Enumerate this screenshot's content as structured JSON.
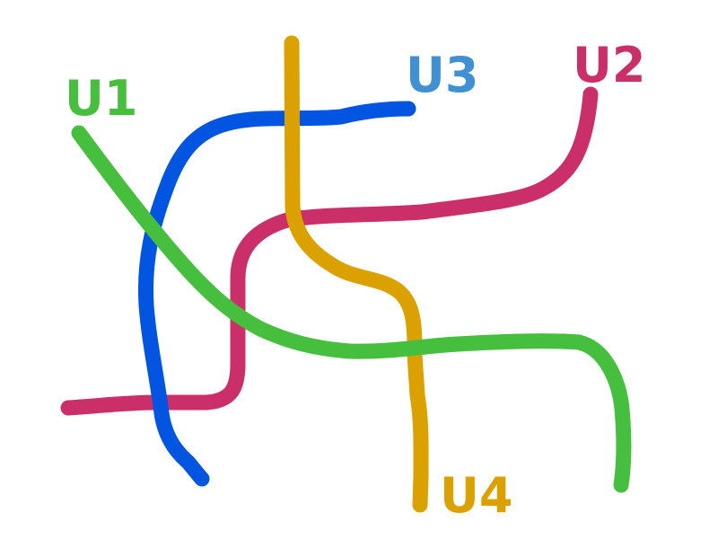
{
  "lines": {
    "u1": {
      "label": "U1",
      "color": "#46bf3f"
    },
    "u2": {
      "label": "U2",
      "color": "#cb2f6a"
    },
    "u3": {
      "label": "U3",
      "color": "#0155e0"
    },
    "u3_label_color": "#3f91d3",
    "u4": {
      "label": "U4",
      "color": "#dba100"
    }
  }
}
